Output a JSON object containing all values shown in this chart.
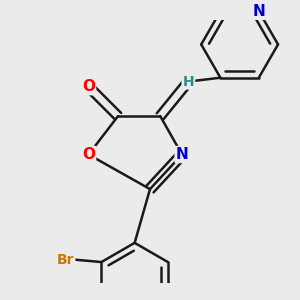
{
  "background_color": "#ebebeb",
  "bond_color": "#1a1a1a",
  "bond_width": 1.8,
  "atom_colors": {
    "O": "#ff0000",
    "N": "#0000cc",
    "Br": "#cc7700",
    "H": "#2e8b8b",
    "C": "#1a1a1a"
  },
  "font_size_atoms": 11,
  "figsize": [
    3.0,
    3.0
  ],
  "dpi": 100
}
